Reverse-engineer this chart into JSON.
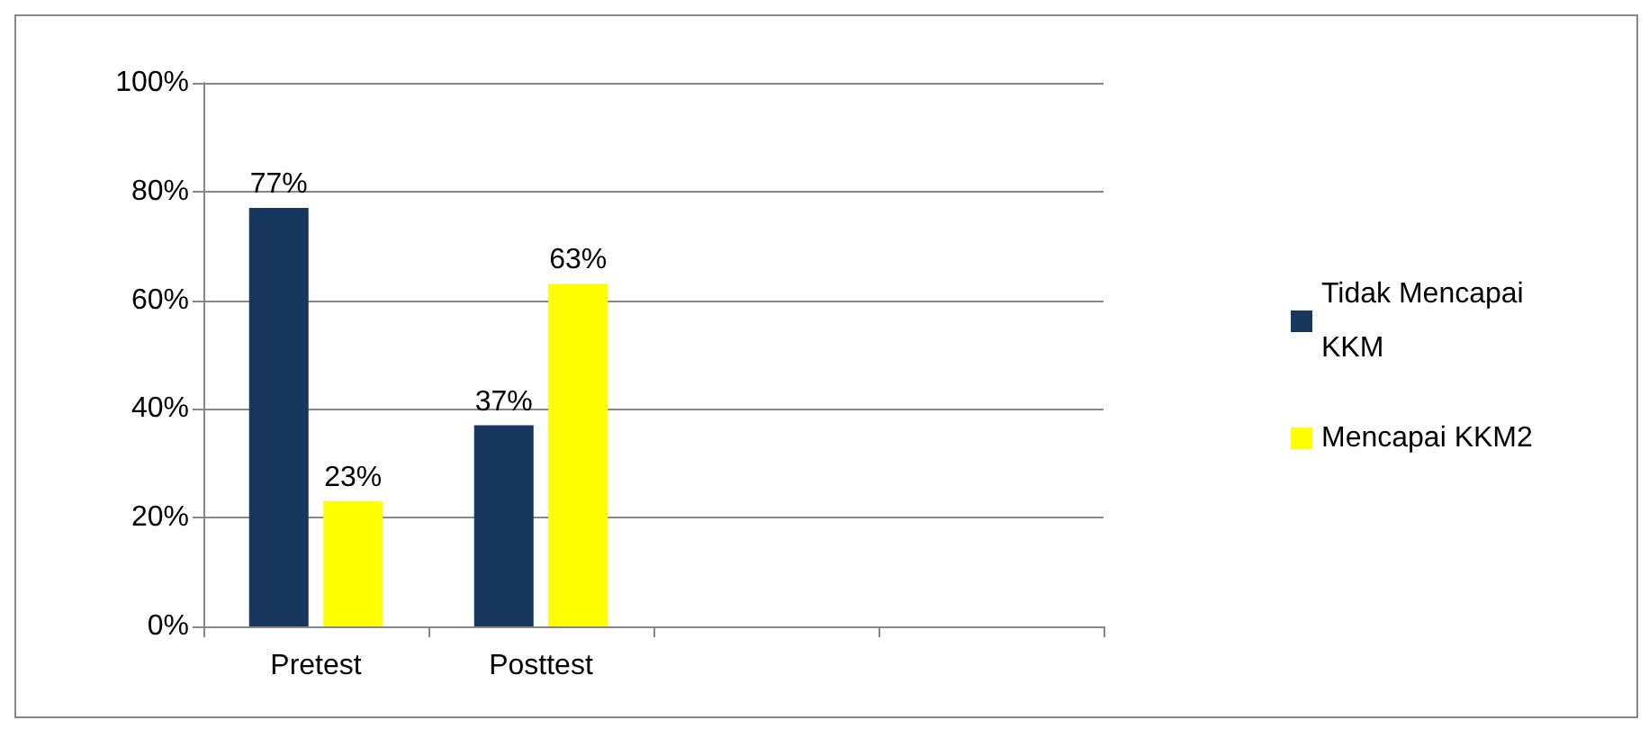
{
  "chart_data": {
    "type": "bar",
    "categories": [
      "Pretest",
      "Posttest",
      null,
      null
    ],
    "series": [
      {
        "name": "Tidak Mencapai KKM",
        "color": "#17375e",
        "values": [
          77,
          37,
          null,
          null
        ],
        "value_labels": [
          "77%",
          "37%",
          null,
          null
        ]
      },
      {
        "name": "Mencapai KKM2",
        "color": "#ffff00",
        "values": [
          23,
          63,
          null,
          null
        ],
        "value_labels": [
          "23%",
          "63%",
          null,
          null
        ]
      }
    ],
    "ylim": [
      0,
      100
    ],
    "yticks": [
      {
        "value": 0,
        "label": "0%"
      },
      {
        "value": 20,
        "label": "20%"
      },
      {
        "value": 40,
        "label": "40%"
      },
      {
        "value": 60,
        "label": "60%"
      },
      {
        "value": 80,
        "label": "80%"
      },
      {
        "value": 100,
        "label": "100%"
      }
    ],
    "grid": "y",
    "legend": "right"
  }
}
